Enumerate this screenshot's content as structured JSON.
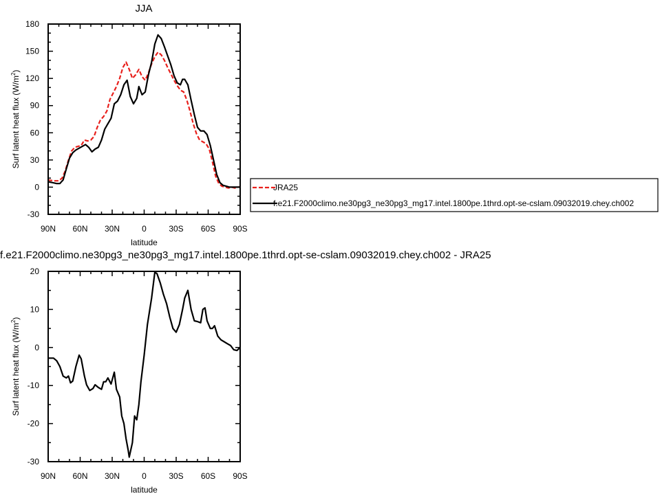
{
  "chart_data": [
    {
      "type": "line",
      "title": "JJA",
      "xlabel": "latitude",
      "ylabel": "Surf latent heat flux (W/m",
      "ylabel_sup": "2",
      "ylabel_close": ")",
      "xlim": [
        90,
        -90
      ],
      "ylim": [
        -30,
        180
      ],
      "xticks": [
        90,
        60,
        30,
        0,
        -30,
        -60,
        -90
      ],
      "xtick_labels": [
        "90N",
        "60N",
        "30N",
        "0",
        "30S",
        "60S",
        "90S"
      ],
      "yticks": [
        -30,
        0,
        30,
        60,
        90,
        120,
        150,
        180
      ],
      "ytick_labels": [
        "-30",
        "0",
        "30",
        "60",
        "90",
        "120",
        "150",
        "180"
      ],
      "legend": "right",
      "series": [
        {
          "name": "JRA25",
          "color": "#e8201c",
          "dash": "dashed",
          "points": [
            [
              90,
              8
            ],
            [
              85,
              7
            ],
            [
              80,
              7
            ],
            [
              77,
              10
            ],
            [
              74,
              18
            ],
            [
              71,
              30
            ],
            [
              68,
              40
            ],
            [
              65,
              44
            ],
            [
              62,
              45
            ],
            [
              59,
              46
            ],
            [
              56,
              52
            ],
            [
              53,
              51
            ],
            [
              50,
              52
            ],
            [
              47,
              56
            ],
            [
              44,
              66
            ],
            [
              41,
              74
            ],
            [
              38,
              78
            ],
            [
              35,
              84
            ],
            [
              32,
              97
            ],
            [
              29,
              104
            ],
            [
              26,
              111
            ],
            [
              23,
              120
            ],
            [
              20,
              132
            ],
            [
              17,
              138
            ],
            [
              14,
              130
            ],
            [
              11,
              120
            ],
            [
              8,
              124
            ],
            [
              5,
              130
            ],
            [
              2,
              122
            ],
            [
              -1,
              118
            ],
            [
              -4,
              126
            ],
            [
              -7,
              136
            ],
            [
              -10,
              144
            ],
            [
              -13,
              149
            ],
            [
              -16,
              146
            ],
            [
              -19,
              140
            ],
            [
              -22,
              132
            ],
            [
              -25,
              125
            ],
            [
              -28,
              118
            ],
            [
              -31,
              112
            ],
            [
              -34,
              107
            ],
            [
              -37,
              105
            ],
            [
              -40,
              96
            ],
            [
              -43,
              84
            ],
            [
              -46,
              70
            ],
            [
              -49,
              59
            ],
            [
              -52,
              52
            ],
            [
              -55,
              50
            ],
            [
              -58,
              48
            ],
            [
              -61,
              42
            ],
            [
              -64,
              28
            ],
            [
              -67,
              12
            ],
            [
              -70,
              4
            ],
            [
              -73,
              1
            ],
            [
              -76,
              0
            ],
            [
              -79,
              -1
            ],
            [
              -82,
              0
            ],
            [
              -85,
              -1
            ],
            [
              -88,
              0
            ],
            [
              -90,
              0
            ]
          ]
        },
        {
          "name": "f.e21.F2000climo.ne30pg3_ne30pg3_mg17.intel.1800pe.1thrd.opt-se-cslam.09032019.chey.ch002",
          "color": "#000000",
          "dash": "solid",
          "points": [
            [
              90,
              6
            ],
            [
              86,
              5
            ],
            [
              82,
              4
            ],
            [
              79,
              4
            ],
            [
              76,
              8
            ],
            [
              73,
              20
            ],
            [
              70,
              32
            ],
            [
              67,
              38
            ],
            [
              64,
              41
            ],
            [
              61,
              43
            ],
            [
              58,
              45
            ],
            [
              55,
              47
            ],
            [
              52,
              44
            ],
            [
              49,
              39
            ],
            [
              46,
              42
            ],
            [
              43,
              44
            ],
            [
              40,
              52
            ],
            [
              37,
              64
            ],
            [
              34,
              70
            ],
            [
              31,
              76
            ],
            [
              28,
              92
            ],
            [
              25,
              95
            ],
            [
              22,
              102
            ],
            [
              19,
              113
            ],
            [
              16,
              118
            ],
            [
              13,
              100
            ],
            [
              10,
              92
            ],
            [
              7,
              98
            ],
            [
              5,
              111
            ],
            [
              2,
              102
            ],
            [
              -1,
              105
            ],
            [
              -4,
              124
            ],
            [
              -7,
              138
            ],
            [
              -10,
              158
            ],
            [
              -13,
              168
            ],
            [
              -16,
              164
            ],
            [
              -19,
              155
            ],
            [
              -22,
              145
            ],
            [
              -25,
              135
            ],
            [
              -28,
              123
            ],
            [
              -31,
              115
            ],
            [
              -34,
              113
            ],
            [
              -36,
              119
            ],
            [
              -38,
              119
            ],
            [
              -41,
              113
            ],
            [
              -44,
              96
            ],
            [
              -47,
              80
            ],
            [
              -50,
              66
            ],
            [
              -53,
              62
            ],
            [
              -56,
              62
            ],
            [
              -59,
              58
            ],
            [
              -62,
              46
            ],
            [
              -65,
              30
            ],
            [
              -68,
              14
            ],
            [
              -71,
              5
            ],
            [
              -74,
              2
            ],
            [
              -77,
              1
            ],
            [
              -80,
              0
            ],
            [
              -83,
              0
            ],
            [
              -86,
              0
            ],
            [
              -88,
              0
            ],
            [
              -90,
              0
            ]
          ]
        }
      ]
    },
    {
      "type": "line",
      "title": "f.e21.F2000climo.ne30pg3_ne30pg3_mg17.intel.1800pe.1thrd.opt-se-cslam.09032019.chey.ch002 - JRA25",
      "xlabel": "latitude",
      "ylabel": "Surf latent heat flux (W/m",
      "ylabel_sup": "2",
      "ylabel_close": ")",
      "xlim": [
        90,
        -90
      ],
      "ylim": [
        -30,
        20
      ],
      "xticks": [
        90,
        60,
        30,
        0,
        -30,
        -60,
        -90
      ],
      "xtick_labels": [
        "90N",
        "60N",
        "30N",
        "0",
        "30S",
        "60S",
        "90S"
      ],
      "yticks": [
        -30,
        -20,
        -10,
        0,
        10,
        20
      ],
      "ytick_labels": [
        "-30",
        "-20",
        "-10",
        "0",
        "10",
        "20"
      ],
      "series": [
        {
          "color": "#000000",
          "dash": "solid",
          "points": [
            [
              90,
              -2.8
            ],
            [
              85,
              -2.8
            ],
            [
              82,
              -3.5
            ],
            [
              79,
              -5
            ],
            [
              76,
              -7.5
            ],
            [
              73,
              -8
            ],
            [
              71,
              -7.5
            ],
            [
              69,
              -9.3
            ],
            [
              67,
              -8.8
            ],
            [
              64,
              -5
            ],
            [
              61,
              -2
            ],
            [
              59,
              -3
            ],
            [
              56,
              -7.5
            ],
            [
              54,
              -9.8
            ],
            [
              51,
              -11.3
            ],
            [
              48,
              -10.8
            ],
            [
              46,
              -9.8
            ],
            [
              43,
              -10.5
            ],
            [
              40,
              -11
            ],
            [
              38,
              -9
            ],
            [
              36,
              -9
            ],
            [
              34,
              -8
            ],
            [
              31,
              -9.6
            ],
            [
              28,
              -6.5
            ],
            [
              26,
              -11
            ],
            [
              23,
              -13
            ],
            [
              21,
              -18
            ],
            [
              19,
              -20
            ],
            [
              17,
              -24
            ],
            [
              15,
              -27
            ],
            [
              14,
              -28.8
            ],
            [
              11,
              -25
            ],
            [
              9,
              -18
            ],
            [
              7,
              -19
            ],
            [
              5,
              -15
            ],
            [
              3,
              -9
            ],
            [
              0,
              -2
            ],
            [
              -3,
              6
            ],
            [
              -7,
              13
            ],
            [
              -10,
              19.8
            ],
            [
              -12,
              19.4
            ],
            [
              -15,
              17
            ],
            [
              -18,
              14
            ],
            [
              -21,
              11.5
            ],
            [
              -24,
              8
            ],
            [
              -27,
              5
            ],
            [
              -30,
              4
            ],
            [
              -33,
              6
            ],
            [
              -36,
              10
            ],
            [
              -38,
              13
            ],
            [
              -41,
              15
            ],
            [
              -44,
              10
            ],
            [
              -47,
              7
            ],
            [
              -50,
              6.8
            ],
            [
              -53,
              6.5
            ],
            [
              -55,
              10
            ],
            [
              -57,
              10.4
            ],
            [
              -59,
              7
            ],
            [
              -62,
              5
            ],
            [
              -64,
              5
            ],
            [
              -66,
              5.7
            ],
            [
              -69,
              3
            ],
            [
              -72,
              2
            ],
            [
              -75,
              1.5
            ],
            [
              -78,
              1
            ],
            [
              -81,
              0.5
            ],
            [
              -84,
              -0.6
            ],
            [
              -87,
              -0.8
            ],
            [
              -90,
              0
            ]
          ]
        }
      ]
    }
  ]
}
